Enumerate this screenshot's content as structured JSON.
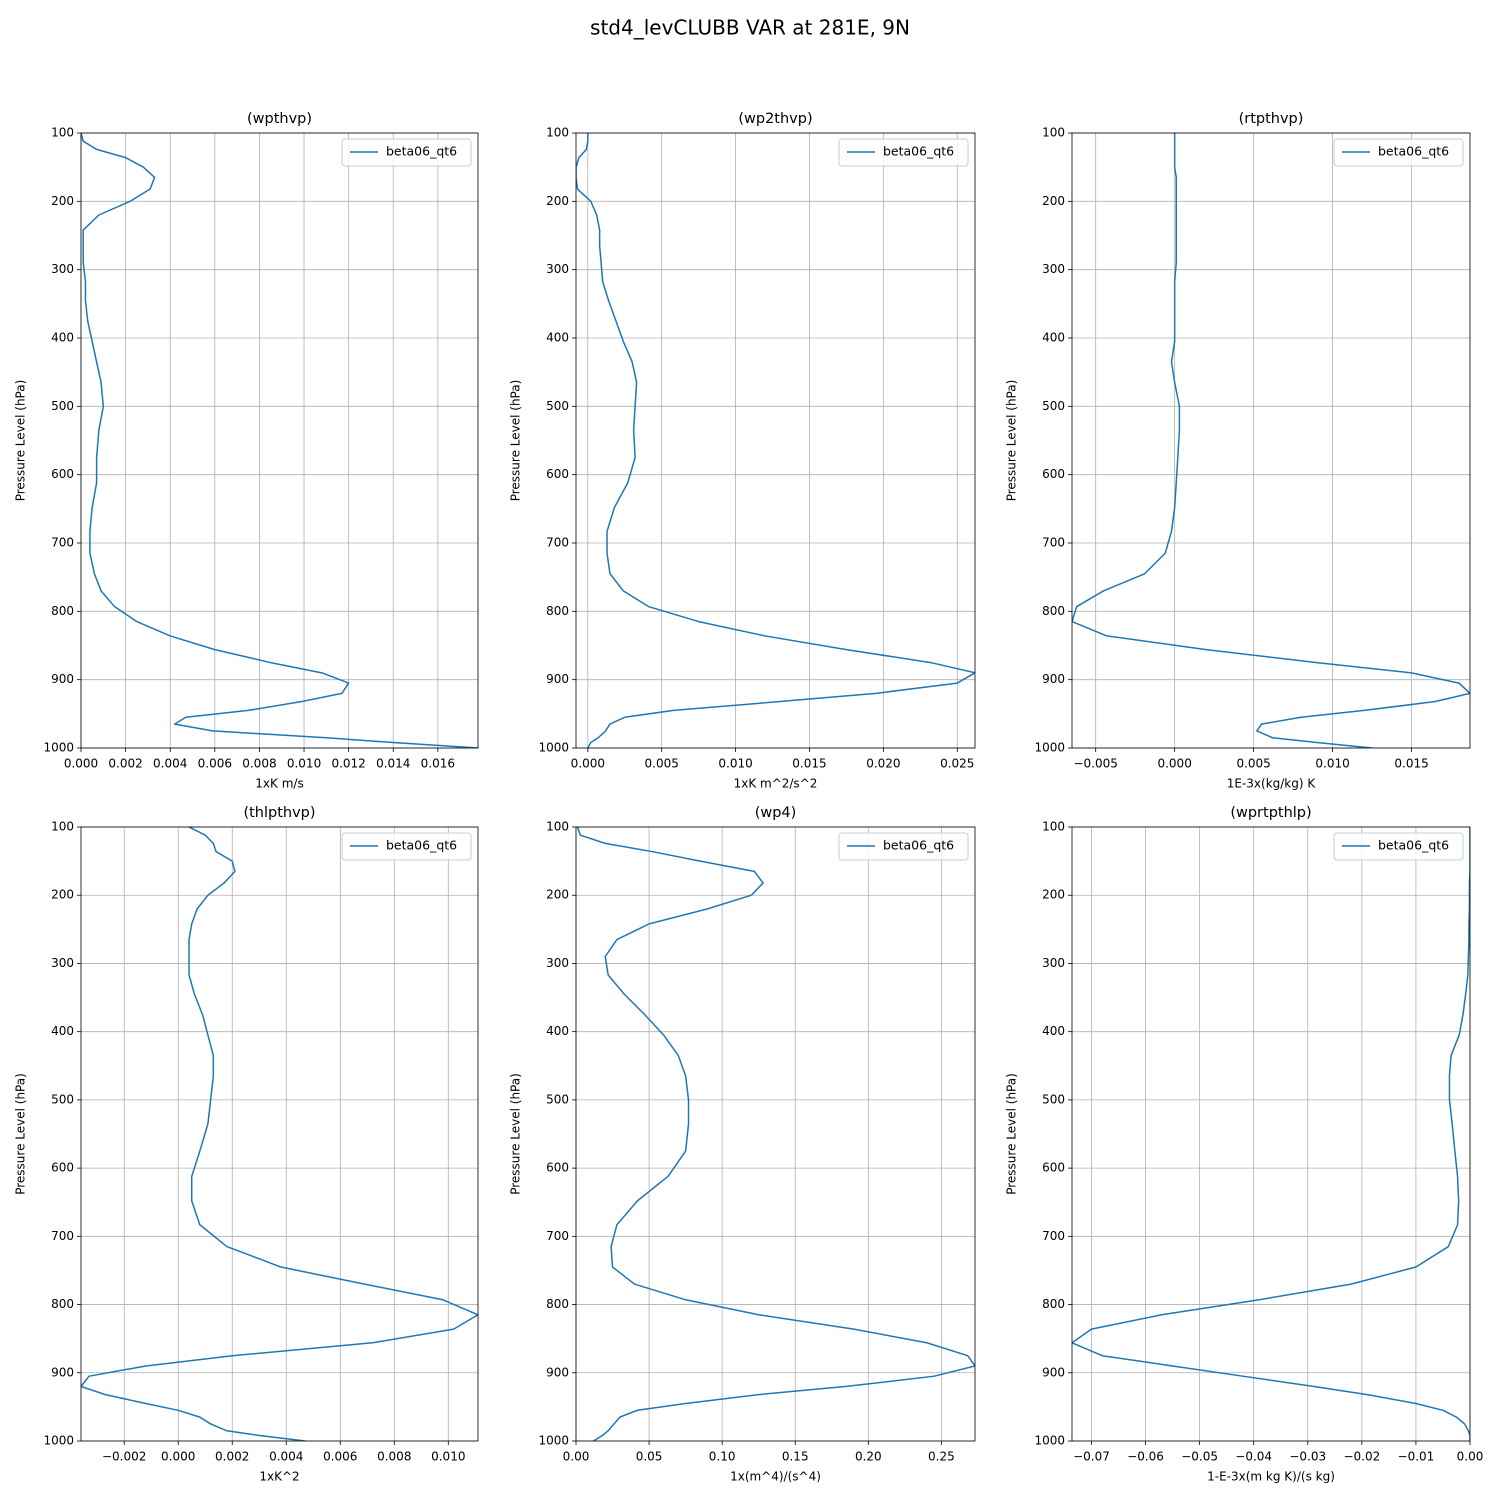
{
  "title": "std4_levCLUBB VAR at 281E, 9N",
  "chart_data": [
    {
      "type": "line",
      "title": "(wpthvp)",
      "xlabel": "1xK m/s",
      "ylabel": "Pressure Level (hPa)",
      "y": [
        100,
        112,
        124,
        136,
        150,
        165,
        182,
        200,
        220,
        242,
        265,
        290,
        317,
        345,
        375,
        405,
        435,
        465,
        500,
        535,
        575,
        612,
        648,
        683,
        715,
        745,
        770,
        793,
        815,
        836,
        856,
        875,
        890,
        905,
        920,
        932,
        945,
        955,
        965,
        975,
        985,
        992,
        1000
      ],
      "series": [
        {
          "name": "beta06_qt6",
          "color": "#1f77b4",
          "values": [
            0,
            0.0001,
            0.0007,
            0.002,
            0.0028,
            0.0033,
            0.0031,
            0.0022,
            0.0008,
            0.0001,
            0.0001,
            0.0001,
            0.0002,
            0.0002,
            0.0003,
            0.0005,
            0.0007,
            0.0009,
            0.001,
            0.0008,
            0.0007,
            0.0007,
            0.0005,
            0.0004,
            0.0004,
            0.0006,
            0.0009,
            0.0015,
            0.0025,
            0.004,
            0.006,
            0.0085,
            0.0108,
            0.012,
            0.0117,
            0.0099,
            0.0075,
            0.0047,
            0.0042,
            0.0059,
            0.011,
            0.014,
            0.0178
          ]
        }
      ],
      "xlim": [
        0,
        0.0178
      ],
      "xticks": [
        {
          "value": 0,
          "label": "0.000"
        },
        {
          "value": 0.002,
          "label": "0.002"
        },
        {
          "value": 0.004,
          "label": "0.004"
        },
        {
          "value": 0.006,
          "label": "0.006"
        },
        {
          "value": 0.008,
          "label": "0.008"
        },
        {
          "value": 0.01,
          "label": "0.010"
        },
        {
          "value": 0.012,
          "label": "0.012"
        },
        {
          "value": 0.014,
          "label": "0.014"
        },
        {
          "value": 0.016,
          "label": "0.016"
        }
      ],
      "ylim": [
        1000,
        100
      ],
      "yticks": [
        100,
        200,
        300,
        400,
        500,
        600,
        700,
        800,
        900,
        1000
      ],
      "grid": true,
      "legend": "upper right"
    },
    {
      "type": "line",
      "title": "(wp2thvp)",
      "xlabel": "1xK m^2/s^2",
      "ylabel": "Pressure Level (hPa)",
      "y": [
        100,
        112,
        124,
        136,
        150,
        165,
        182,
        200,
        220,
        242,
        265,
        290,
        317,
        345,
        375,
        405,
        435,
        465,
        500,
        535,
        575,
        612,
        648,
        683,
        715,
        745,
        770,
        793,
        815,
        836,
        856,
        875,
        890,
        905,
        920,
        932,
        945,
        955,
        965,
        975,
        985,
        992,
        1000
      ],
      "series": [
        {
          "name": "beta06_qt6",
          "color": "#1f77b4",
          "values": [
            0,
            0,
            -0.0001,
            -0.0006,
            -0.0008,
            -0.0008,
            -0.0007,
            0.0002,
            0.0006,
            0.0008,
            0.0008,
            0.0009,
            0.001,
            0.0014,
            0.0019,
            0.0024,
            0.003,
            0.0033,
            0.0032,
            0.0031,
            0.0032,
            0.0027,
            0.0018,
            0.0013,
            0.0013,
            0.0015,
            0.0024,
            0.0041,
            0.0075,
            0.012,
            0.0175,
            0.0232,
            0.0262,
            0.025,
            0.0195,
            0.013,
            0.0058,
            0.0025,
            0.0015,
            0.0012,
            0.0007,
            0.0002,
            0
          ]
        }
      ],
      "xlim": [
        -0.0008,
        0.0262
      ],
      "xticks": [
        {
          "value": 0,
          "label": "0.000"
        },
        {
          "value": 0.005,
          "label": "0.005"
        },
        {
          "value": 0.01,
          "label": "0.010"
        },
        {
          "value": 0.015,
          "label": "0.015"
        },
        {
          "value": 0.02,
          "label": "0.020"
        },
        {
          "value": 0.025,
          "label": "0.025"
        }
      ],
      "ylim": [
        1000,
        100
      ],
      "yticks": [
        100,
        200,
        300,
        400,
        500,
        600,
        700,
        800,
        900,
        1000
      ],
      "grid": true,
      "legend": "upper right"
    },
    {
      "type": "line",
      "title": "(rtpthvp)",
      "xlabel": "1E-3x(kg/kg) K",
      "ylabel": "Pressure Level (hPa)",
      "y": [
        100,
        112,
        124,
        136,
        150,
        165,
        182,
        200,
        220,
        242,
        265,
        290,
        317,
        345,
        375,
        405,
        435,
        465,
        500,
        535,
        575,
        612,
        648,
        683,
        715,
        745,
        770,
        793,
        815,
        836,
        856,
        875,
        890,
        905,
        920,
        932,
        945,
        955,
        965,
        975,
        985,
        992,
        1000
      ],
      "series": [
        {
          "name": "beta06_qt6",
          "color": "#1f77b4",
          "values": [
            0,
            0,
            0,
            0,
            0,
            0.0001,
            0.0001,
            0.0001,
            0.0001,
            0.0001,
            0.0001,
            0.0001,
            0,
            0,
            0,
            0,
            -0.0002,
            0,
            0.0003,
            0.0003,
            0.0002,
            0.0001,
            0,
            -0.0002,
            -0.0006,
            -0.0019,
            -0.0045,
            -0.0062,
            -0.0065,
            -0.0043,
            0.002,
            0.009,
            0.015,
            0.018,
            0.0187,
            0.0165,
            0.012,
            0.008,
            0.0055,
            0.0052,
            0.0062,
            0.009,
            0.0125
          ]
        }
      ],
      "xlim": [
        -0.0065,
        0.0187
      ],
      "xticks": [
        {
          "value": -0.005,
          "label": "−0.005"
        },
        {
          "value": 0,
          "label": "0.000"
        },
        {
          "value": 0.005,
          "label": "0.005"
        },
        {
          "value": 0.01,
          "label": "0.010"
        },
        {
          "value": 0.015,
          "label": "0.015"
        }
      ],
      "ylim": [
        1000,
        100
      ],
      "yticks": [
        100,
        200,
        300,
        400,
        500,
        600,
        700,
        800,
        900,
        1000
      ],
      "grid": true,
      "legend": "upper right"
    },
    {
      "type": "line",
      "title": "(thlpthvp)",
      "xlabel": "1xK^2",
      "ylabel": "Pressure Level (hPa)",
      "y": [
        100,
        112,
        124,
        136,
        150,
        165,
        182,
        200,
        220,
        242,
        265,
        290,
        317,
        345,
        375,
        405,
        435,
        465,
        500,
        535,
        575,
        612,
        648,
        683,
        715,
        745,
        770,
        793,
        815,
        836,
        856,
        875,
        890,
        905,
        920,
        932,
        945,
        955,
        965,
        975,
        985,
        992,
        1000
      ],
      "series": [
        {
          "name": "beta06_qt6",
          "color": "#1f77b4",
          "values": [
            0.0004,
            0.001,
            0.0013,
            0.0014,
            0.002,
            0.0021,
            0.0017,
            0.0011,
            0.0007,
            0.0005,
            0.0004,
            0.0004,
            0.0004,
            0.0006,
            0.0009,
            0.0011,
            0.0013,
            0.0013,
            0.0012,
            0.0011,
            0.0008,
            0.0005,
            0.0005,
            0.0008,
            0.0018,
            0.0038,
            0.0069,
            0.0098,
            0.0111,
            0.0102,
            0.0072,
            0.002,
            -0.0012,
            -0.0033,
            -0.0036,
            -0.0027,
            -0.0012,
            0,
            0.0008,
            0.0012,
            0.0018,
            0.003,
            0.0047
          ]
        }
      ],
      "xlim": [
        -0.0036,
        0.0111
      ],
      "xticks": [
        {
          "value": -0.002,
          "label": "−0.002"
        },
        {
          "value": 0,
          "label": "0.000"
        },
        {
          "value": 0.002,
          "label": "0.002"
        },
        {
          "value": 0.004,
          "label": "0.004"
        },
        {
          "value": 0.006,
          "label": "0.006"
        },
        {
          "value": 0.008,
          "label": "0.008"
        },
        {
          "value": 0.01,
          "label": "0.010"
        }
      ],
      "ylim": [
        1000,
        100
      ],
      "yticks": [
        100,
        200,
        300,
        400,
        500,
        600,
        700,
        800,
        900,
        1000
      ],
      "grid": true,
      "legend": "upper right"
    },
    {
      "type": "line",
      "title": "(wp4)",
      "xlabel": "1x(m^4)/(s^4)",
      "ylabel": "Pressure Level (hPa)",
      "y": [
        100,
        112,
        124,
        136,
        150,
        165,
        182,
        200,
        220,
        242,
        265,
        290,
        317,
        345,
        375,
        405,
        435,
        465,
        500,
        535,
        575,
        612,
        648,
        683,
        715,
        745,
        770,
        793,
        815,
        836,
        856,
        875,
        890,
        905,
        920,
        932,
        945,
        955,
        965,
        975,
        985,
        992,
        1000
      ],
      "series": [
        {
          "name": "beta06_qt6",
          "color": "#1f77b4",
          "values": [
            0.001,
            0.003,
            0.02,
            0.052,
            0.085,
            0.122,
            0.128,
            0.12,
            0.09,
            0.05,
            0.028,
            0.02,
            0.022,
            0.033,
            0.047,
            0.06,
            0.07,
            0.075,
            0.077,
            0.077,
            0.075,
            0.063,
            0.042,
            0.028,
            0.024,
            0.025,
            0.04,
            0.075,
            0.125,
            0.19,
            0.24,
            0.268,
            0.273,
            0.245,
            0.185,
            0.125,
            0.075,
            0.042,
            0.03,
            0.026,
            0.022,
            0.018,
            0.012
          ]
        }
      ],
      "xlim": [
        0,
        0.273
      ],
      "xticks": [
        {
          "value": 0,
          "label": "0.00"
        },
        {
          "value": 0.05,
          "label": "0.05"
        },
        {
          "value": 0.1,
          "label": "0.10"
        },
        {
          "value": 0.15,
          "label": "0.15"
        },
        {
          "value": 0.2,
          "label": "0.20"
        },
        {
          "value": 0.25,
          "label": "0.25"
        }
      ],
      "ylim": [
        1000,
        100
      ],
      "yticks": [
        100,
        200,
        300,
        400,
        500,
        600,
        700,
        800,
        900,
        1000
      ],
      "grid": true,
      "legend": "upper right"
    },
    {
      "type": "line",
      "title": "(wprtpthlp)",
      "xlabel": "1-E-3x(m kg K)/(s kg)",
      "ylabel": "Pressure Level (hPa)",
      "y": [
        100,
        112,
        124,
        136,
        150,
        165,
        182,
        200,
        220,
        242,
        265,
        290,
        317,
        345,
        375,
        405,
        435,
        465,
        500,
        535,
        575,
        612,
        648,
        683,
        715,
        745,
        770,
        793,
        815,
        836,
        856,
        875,
        890,
        905,
        920,
        932,
        945,
        955,
        965,
        975,
        985,
        992,
        1000
      ],
      "series": [
        {
          "name": "beta06_qt6",
          "color": "#1f77b4",
          "values": [
            0,
            0,
            0,
            0,
            0,
            0,
            -0.0001,
            -0.0001,
            -0.0001,
            -0.0002,
            -0.0002,
            -0.0003,
            -0.0004,
            -0.0008,
            -0.0013,
            -0.002,
            -0.0035,
            -0.0038,
            -0.0038,
            -0.0033,
            -0.0028,
            -0.0023,
            -0.0021,
            -0.0023,
            -0.004,
            -0.01,
            -0.022,
            -0.039,
            -0.057,
            -0.07,
            -0.0736,
            -0.068,
            -0.055,
            -0.042,
            -0.029,
            -0.019,
            -0.01,
            -0.005,
            -0.0025,
            -0.001,
            -0.0003,
            0,
            0
          ]
        }
      ],
      "xlim": [
        -0.0736,
        0
      ],
      "xticks": [
        {
          "value": -0.07,
          "label": "−0.07"
        },
        {
          "value": -0.06,
          "label": "−0.06"
        },
        {
          "value": -0.05,
          "label": "−0.05"
        },
        {
          "value": -0.04,
          "label": "−0.04"
        },
        {
          "value": -0.03,
          "label": "−0.03"
        },
        {
          "value": -0.02,
          "label": "−0.02"
        },
        {
          "value": -0.01,
          "label": "−0.01"
        },
        {
          "value": 0,
          "label": "0.00"
        }
      ],
      "ylim": [
        1000,
        100
      ],
      "yticks": [
        100,
        200,
        300,
        400,
        500,
        600,
        700,
        800,
        900,
        1000
      ],
      "grid": true,
      "legend": "upper right"
    }
  ]
}
